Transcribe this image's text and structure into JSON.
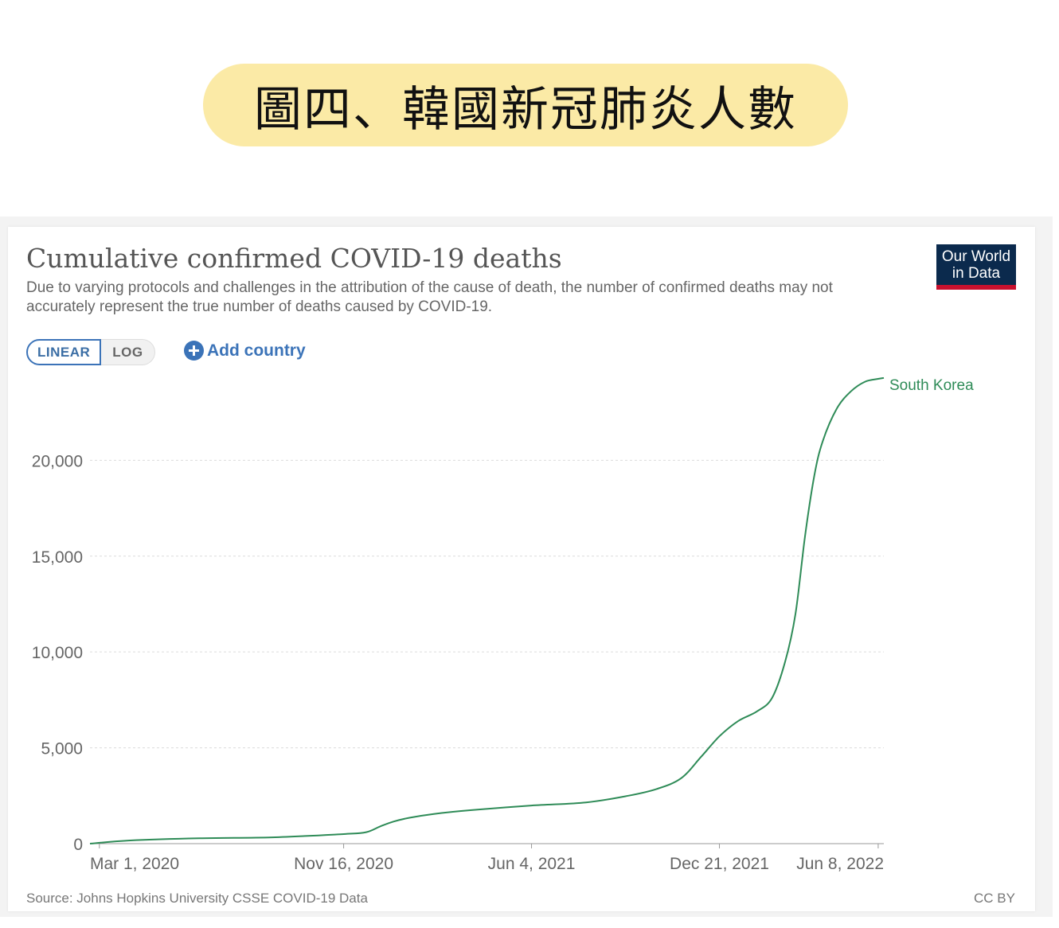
{
  "banner": {
    "text": "圖四、韓國新冠肺炎人數"
  },
  "header": {
    "title": "Cumulative confirmed COVID-19 deaths",
    "subtitle": "Due to varying protocols and challenges in the attribution of the cause of death, the number of confirmed deaths may not accurately represent the true number of deaths caused by COVID-19.",
    "logo_line1": "Our World",
    "logo_line2": "in Data"
  },
  "controls": {
    "linear_label": "LINEAR",
    "log_label": "LOG",
    "add_country_label": "Add country"
  },
  "footer": {
    "source": "Source: Johns Hopkins University CSSE COVID-19 Data",
    "license": "CC BY"
  },
  "colors": {
    "series": "#2e8b57",
    "accent": "#3b73b8",
    "logo_bg": "#0b2a4d",
    "logo_bar": "#c8102e",
    "banner": "#fbeaa6"
  },
  "chart_data": {
    "type": "line",
    "title": "Cumulative confirmed COVID-19 deaths",
    "xlabel": "",
    "ylabel": "",
    "ylim": [
      0,
      24500
    ],
    "xlim": [
      "2020-02-20",
      "2022-06-14"
    ],
    "yticks": [
      {
        "value": 0,
        "label": "0"
      },
      {
        "value": 5000,
        "label": "5,000"
      },
      {
        "value": 10000,
        "label": "10,000"
      },
      {
        "value": 15000,
        "label": "15,000"
      },
      {
        "value": 20000,
        "label": "20,000"
      }
    ],
    "xticks": [
      {
        "value": "2020-03-01",
        "label": "Mar 1, 2020"
      },
      {
        "value": "2020-11-16",
        "label": "Nov 16, 2020"
      },
      {
        "value": "2021-06-04",
        "label": "Jun 4, 2021"
      },
      {
        "value": "2021-12-21",
        "label": "Dec 21, 2021"
      },
      {
        "value": "2022-06-08",
        "label": "Jun 8, 2022"
      }
    ],
    "grid": true,
    "series": [
      {
        "name": "South Korea",
        "points": [
          {
            "x": "2020-02-20",
            "y": 0
          },
          {
            "x": "2020-04-01",
            "y": 160
          },
          {
            "x": "2020-06-15",
            "y": 280
          },
          {
            "x": "2020-09-01",
            "y": 330
          },
          {
            "x": "2020-11-16",
            "y": 500
          },
          {
            "x": "2020-12-10",
            "y": 600
          },
          {
            "x": "2020-12-25",
            "y": 900
          },
          {
            "x": "2021-01-08",
            "y": 1150
          },
          {
            "x": "2021-01-25",
            "y": 1350
          },
          {
            "x": "2021-02-20",
            "y": 1550
          },
          {
            "x": "2021-04-01",
            "y": 1750
          },
          {
            "x": "2021-06-04",
            "y": 1990
          },
          {
            "x": "2021-08-01",
            "y": 2150
          },
          {
            "x": "2021-09-15",
            "y": 2500
          },
          {
            "x": "2021-10-15",
            "y": 2850
          },
          {
            "x": "2021-11-10",
            "y": 3400
          },
          {
            "x": "2021-12-01",
            "y": 4500
          },
          {
            "x": "2021-12-21",
            "y": 5600
          },
          {
            "x": "2022-01-10",
            "y": 6400
          },
          {
            "x": "2022-01-30",
            "y": 6900
          },
          {
            "x": "2022-02-15",
            "y": 7600
          },
          {
            "x": "2022-03-01",
            "y": 9500
          },
          {
            "x": "2022-03-12",
            "y": 12000
          },
          {
            "x": "2022-03-22",
            "y": 16000
          },
          {
            "x": "2022-04-01",
            "y": 19200
          },
          {
            "x": "2022-04-10",
            "y": 21000
          },
          {
            "x": "2022-04-25",
            "y": 22700
          },
          {
            "x": "2022-05-10",
            "y": 23600
          },
          {
            "x": "2022-05-25",
            "y": 24100
          },
          {
            "x": "2022-06-08",
            "y": 24250
          },
          {
            "x": "2022-06-14",
            "y": 24300
          }
        ]
      }
    ]
  }
}
